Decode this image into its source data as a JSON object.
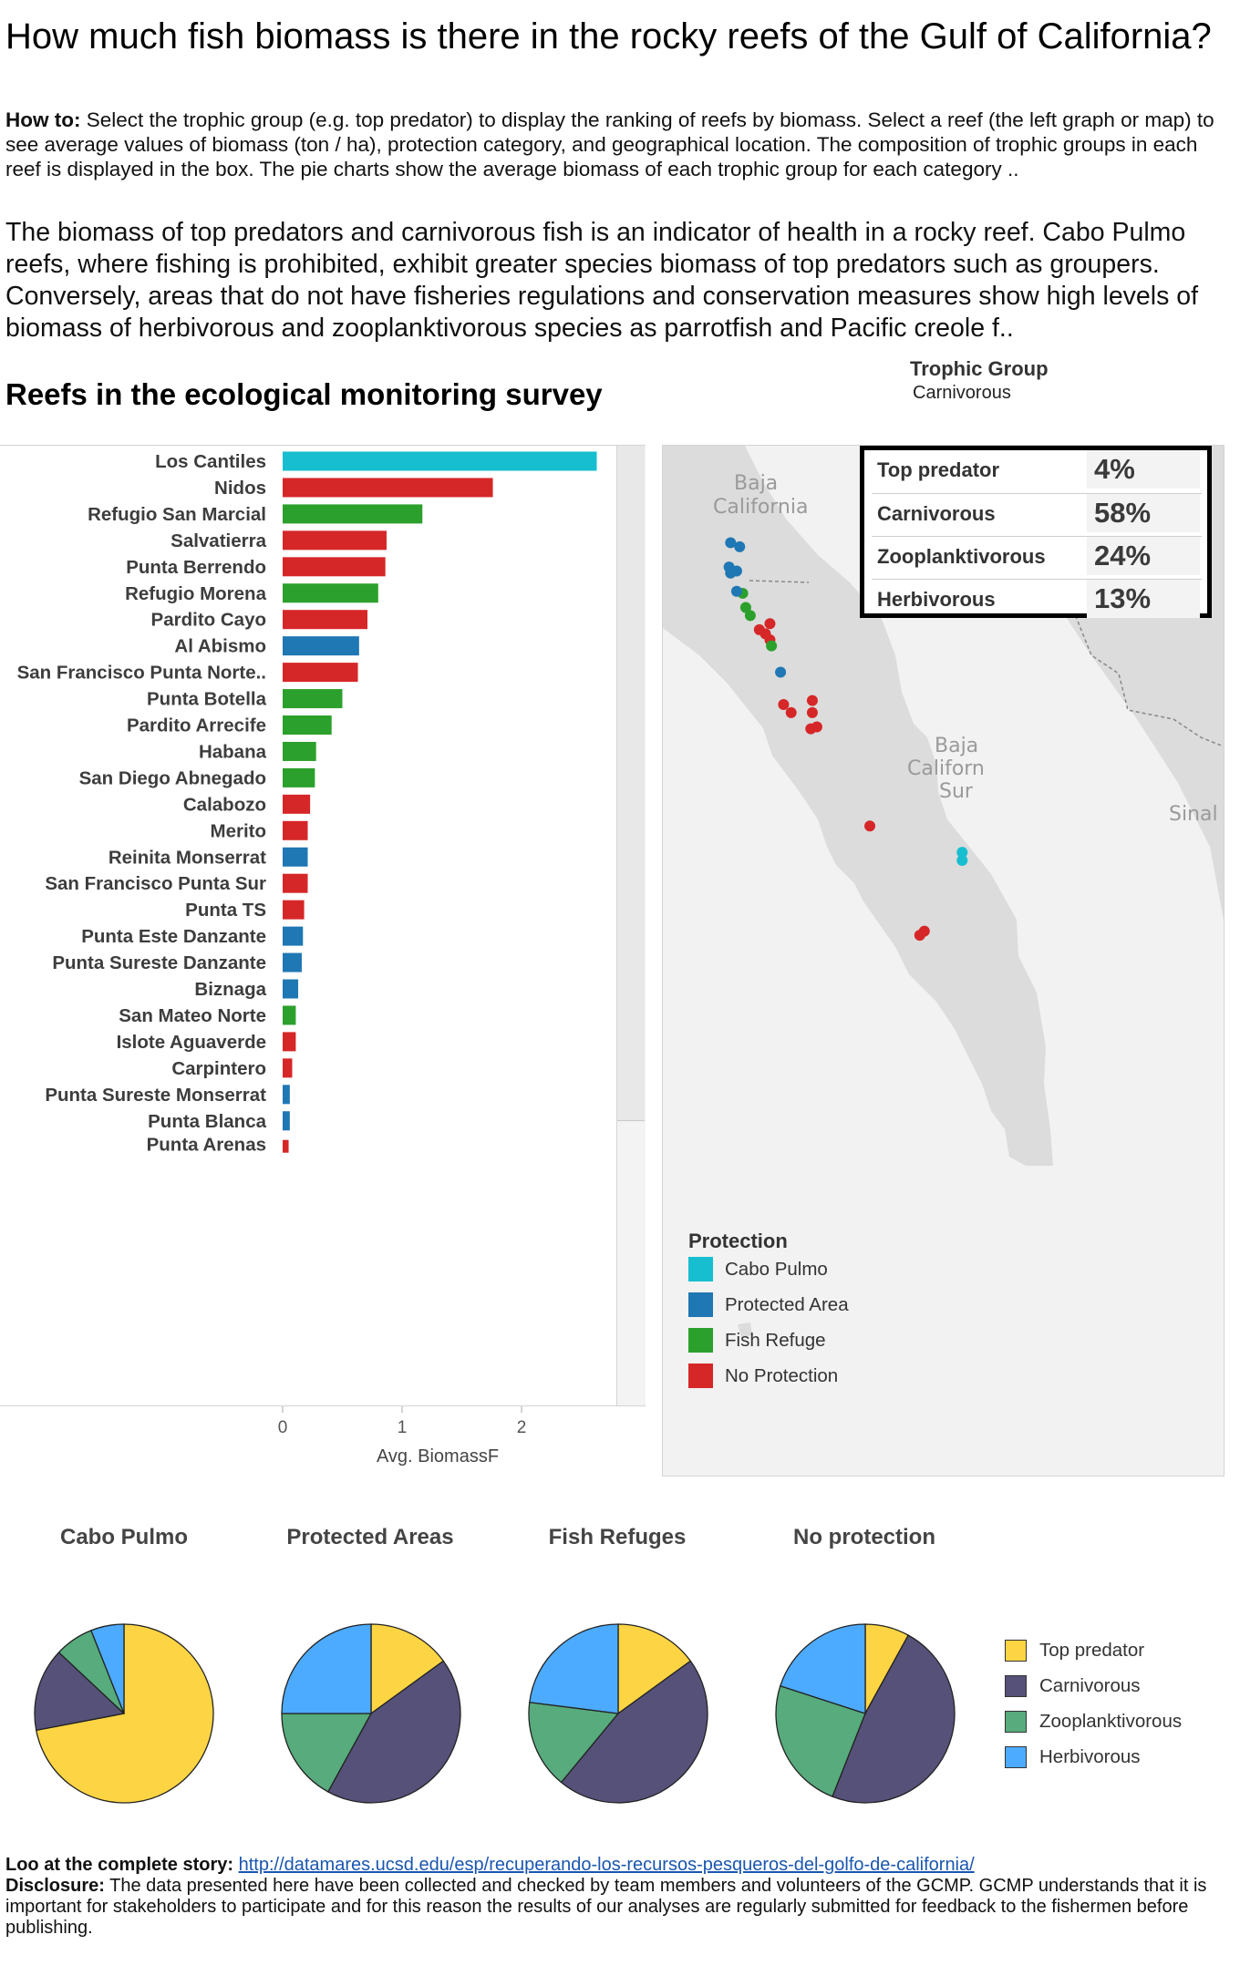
{
  "title": "How much fish biomass is there in the rocky reefs of the Gulf of California?",
  "howto": {
    "label": "How to:",
    "text": " Select the trophic group (e.g. top predator) to display the ranking of reefs by biomass. Select a reef (the left graph or map) to see average values of biomass (ton / ha), protection category, and geographical location. The composition of trophic groups in each reef is displayed in the box. The pie charts show the average biomass of each trophic group for each category .."
  },
  "intro": "The biomass of top predators and carnivorous fish is an indicator of health in a rocky reef. Cabo Pulmo reefs, where fishing is prohibited, exhibit greater species biomass of top predators such as groupers. Conversely, areas that do not have fisheries regulations and conservation measures show high levels of biomass of herbivorous and zooplanktivorous species as parrotfish and Pacific creole f..",
  "section_title": "Reefs in the ecological monitoring survey",
  "trophic_filter": {
    "title": "Trophic Group",
    "value": "Carnivorous"
  },
  "colors": {
    "cabo_pulmo": "#17becf",
    "protected_area": "#1f77b4",
    "fish_refuge": "#2ca02c",
    "no_protection": "#d62728",
    "top_predator": "#fdd544",
    "carnivorous": "#565179",
    "zooplanktivorous": "#57ab7c",
    "herbivorous": "#4dabff",
    "map_land": "#dcdcdc",
    "map_sea": "#f2f2f2"
  },
  "chart_data": [
    {
      "type": "bar",
      "orientation": "horizontal",
      "xlabel": "Avg. BiomassF",
      "xticks": [
        0,
        1,
        2
      ],
      "xlim": [
        -0.08,
        2.75
      ],
      "categories": [
        "Los Cantiles",
        "Nidos",
        "Refugio San Marcial",
        "Salvatierra",
        "Punta Berrendo",
        "Refugio Morena",
        "Pardito Cayo",
        "Al Abismo",
        "San Francisco Punta Norte..",
        "Punta Botella",
        "Pardito Arrecife",
        "Habana",
        "San Diego Abnegado",
        "Calabozo",
        "Merito",
        "Reinita Monserrat",
        "San Francisco Punta Sur",
        "Punta TS",
        "Punta Este Danzante",
        "Punta Sureste Danzante",
        "Biznaga",
        "San Mateo Norte",
        "Islote Aguaverde",
        "Carpintero",
        "Punta Sureste Monserrat",
        "Punta Blanca",
        "Punta Arenas"
      ],
      "values": [
        2.63,
        1.76,
        1.17,
        0.87,
        0.86,
        0.8,
        0.71,
        0.64,
        0.63,
        0.5,
        0.41,
        0.28,
        0.27,
        0.23,
        0.21,
        0.21,
        0.21,
        0.18,
        0.17,
        0.16,
        0.13,
        0.11,
        0.11,
        0.08,
        0.06,
        0.06,
        0.05
      ],
      "protection": [
        "Cabo Pulmo",
        "No Protection",
        "Fish Refuge",
        "No Protection",
        "No Protection",
        "Fish Refuge",
        "No Protection",
        "Protected Area",
        "No Protection",
        "Fish Refuge",
        "Fish Refuge",
        "Fish Refuge",
        "Fish Refuge",
        "No Protection",
        "No Protection",
        "Protected Area",
        "No Protection",
        "No Protection",
        "Protected Area",
        "Protected Area",
        "Protected Area",
        "Fish Refuge",
        "No Protection",
        "No Protection",
        "Protected Area",
        "Protected Area",
        "No Protection"
      ]
    },
    {
      "type": "pie",
      "title": "Cabo Pulmo",
      "categories": [
        "Top predator",
        "Carnivorous",
        "Zooplanktivorous",
        "Herbivorous"
      ],
      "values": [
        72,
        15,
        7,
        6
      ]
    },
    {
      "type": "pie",
      "title": "Protected Areas",
      "categories": [
        "Top predator",
        "Carnivorous",
        "Zooplanktivorous",
        "Herbivorous"
      ],
      "values": [
        15,
        43,
        17,
        25
      ]
    },
    {
      "type": "pie",
      "title": "Fish Refuges",
      "categories": [
        "Top predator",
        "Carnivorous",
        "Zooplanktivorous",
        "Herbivorous"
      ],
      "values": [
        15,
        46,
        16,
        23
      ]
    },
    {
      "type": "pie",
      "title": "No protection",
      "categories": [
        "Top predator",
        "Carnivorous",
        "Zooplanktivorous",
        "Herbivorous"
      ],
      "values": [
        8,
        48,
        24,
        20
      ]
    }
  ],
  "composition": [
    {
      "name": "Top predator",
      "value": "4%"
    },
    {
      "name": "Carnivorous",
      "value": "58%"
    },
    {
      "name": "Zooplanktivorous",
      "value": "24%"
    },
    {
      "name": "Herbivorous",
      "value": "13%"
    }
  ],
  "map": {
    "places": [
      "Baja",
      "California",
      "Baja",
      "Californ",
      "Sur",
      "Sinal"
    ],
    "reef_points": [
      {
        "protection": "Protected Area",
        "lat": 24.98,
        "lon": -110.95
      },
      {
        "protection": "Protected Area",
        "lat": 24.96,
        "lon": -110.89
      },
      {
        "protection": "Protected Area",
        "lat": 24.86,
        "lon": -110.96
      },
      {
        "protection": "Protected Area",
        "lat": 24.83,
        "lon": -110.95
      },
      {
        "protection": "Protected Area",
        "lat": 24.84,
        "lon": -110.91
      },
      {
        "protection": "Fish Refuge",
        "lat": 24.73,
        "lon": -110.87
      },
      {
        "protection": "Protected Area",
        "lat": 24.74,
        "lon": -110.91
      },
      {
        "protection": "Fish Refuge",
        "lat": 24.66,
        "lon": -110.85
      },
      {
        "protection": "Fish Refuge",
        "lat": 24.62,
        "lon": -110.82
      },
      {
        "protection": "No Protection",
        "lat": 24.55,
        "lon": -110.76
      },
      {
        "protection": "No Protection",
        "lat": 24.58,
        "lon": -110.69
      },
      {
        "protection": "No Protection",
        "lat": 24.53,
        "lon": -110.72
      },
      {
        "protection": "No Protection",
        "lat": 24.5,
        "lon": -110.69
      },
      {
        "protection": "Fish Refuge",
        "lat": 24.47,
        "lon": -110.68
      },
      {
        "protection": "Protected Area",
        "lat": 24.34,
        "lon": -110.62
      },
      {
        "protection": "No Protection",
        "lat": 24.18,
        "lon": -110.6
      },
      {
        "protection": "No Protection",
        "lat": 24.14,
        "lon": -110.55
      },
      {
        "protection": "No Protection",
        "lat": 24.2,
        "lon": -110.41
      },
      {
        "protection": "No Protection",
        "lat": 24.14,
        "lon": -110.41
      },
      {
        "protection": "No Protection",
        "lat": 24.07,
        "lon": -110.38
      },
      {
        "protection": "No Protection",
        "lat": 24.06,
        "lon": -110.42
      },
      {
        "protection": "No Protection",
        "lat": 23.58,
        "lon": -110.03
      },
      {
        "protection": "Cabo Pulmo",
        "lat": 23.45,
        "lon": -109.42
      },
      {
        "protection": "Cabo Pulmo",
        "lat": 23.41,
        "lon": -109.42
      },
      {
        "protection": "No Protection",
        "lat": 23.06,
        "lon": -109.67
      },
      {
        "protection": "No Protection",
        "lat": 23.04,
        "lon": -109.7
      }
    ]
  },
  "protection_legend": {
    "title": "Protection",
    "items": [
      "Cabo Pulmo",
      "Protected Area",
      "Fish Refuge",
      "No Protection"
    ]
  },
  "trophic_legend": [
    "Top predator",
    "Carnivorous",
    "Zooplanktivorous",
    "Herbivorous"
  ],
  "footer": {
    "story_label": "Loo at the complete story:",
    "story_link": "http://datamares.ucsd.edu/esp/recuperando-los-recursos-pesqueros-del-golfo-de-california/",
    "disclosure_label": "Disclosure:",
    "disclosure_text": " The data presented here have been collected and checked by team members and volunteers of the GCMP. GCMP understands that it is important for stakeholders to participate and for this reason the results of our analyses are regularly submitted for feedback to the fishermen before publishing."
  }
}
